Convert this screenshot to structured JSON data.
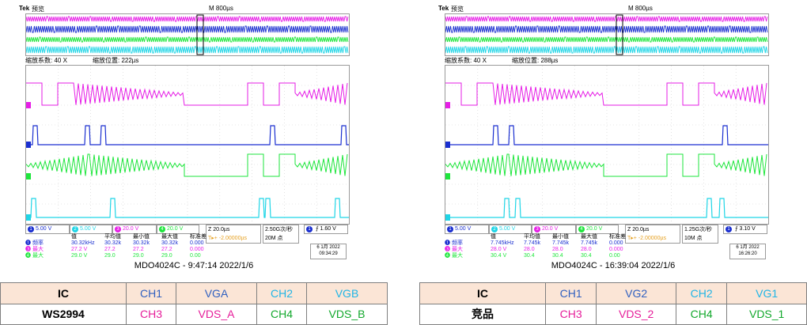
{
  "colors": {
    "ch1": "#ffff00",
    "ch2": "#1fd5e6",
    "ch3": "#e61ee6",
    "ch4": "#1ee63c",
    "ch1_trace": "#1a2fd0",
    "ch2_trace": "#1fd5e6",
    "bg_label": "#fbe5d6"
  },
  "panels": [
    {
      "id": "left",
      "topbar": {
        "logo": "Tek",
        "mode": "预览",
        "mscale": "M 800µs"
      },
      "zoom": {
        "factor": "缩放系数: 40 X",
        "position": "缩放位置: 222µs"
      },
      "settings": {
        "ch1": "5.00 V",
        "ch2": "5.00 V",
        "ch3": "20.0 V",
        "ch4": "20.0 V",
        "timebase": "Z 20.0µs",
        "trigpos": "T▸+ -2.00000µs",
        "samplerate": "2.50G次/秒",
        "points": "20M 点",
        "trig": "1.60 V"
      },
      "meas": {
        "header": [
          "值",
          "平均值",
          "最小值",
          "最大值",
          "标准差"
        ],
        "rows": [
          {
            "label": "频率",
            "values": [
              "30.32kHz",
              "30.32k",
              "30.32k",
              "30.32k",
              "0.000"
            ]
          },
          {
            "label": "最大",
            "values": [
              "27.2 V",
              "27.2",
              "27.2",
              "27.2",
              "0.000"
            ]
          },
          {
            "label": "最大",
            "values": [
              "29.0 V",
              "29.0",
              "29.0",
              "29.0",
              "0.00"
            ]
          }
        ]
      },
      "date": {
        "line1": "6 1月 2022",
        "line2": "09:34:29"
      },
      "caption": "MDO4024C - 9:47:14   2022/1/6",
      "legend": {
        "ic": "IC",
        "part": "WS2994",
        "ch1": "CH1",
        "ch1_name": "VGA",
        "ch2": "CH2",
        "ch2_name": "VGB",
        "ch3": "CH3",
        "ch3_name": "VDS_A",
        "ch4": "CH4",
        "ch4_name": "VDS_B"
      }
    },
    {
      "id": "right",
      "topbar": {
        "logo": "Tek",
        "mode": "预览",
        "mscale": "M 800µs"
      },
      "zoom": {
        "factor": "缩放系数: 40 X",
        "position": "缩放位置: 288µs"
      },
      "settings": {
        "ch1": "5.00 V",
        "ch2": "5.00 V",
        "ch3": "20.0 V",
        "ch4": "20.0 V",
        "timebase": "Z 20.0µs",
        "trigpos": "T▸+ -2.00000µs",
        "samplerate": "1.25G次/秒",
        "points": "10M 点",
        "trig": "3.10 V"
      },
      "meas": {
        "header": [
          "值",
          "平均值",
          "最小值",
          "最大值",
          "标准差"
        ],
        "rows": [
          {
            "label": "频率",
            "values": [
              "7.745kHz",
              "7.745k",
              "7.745k",
              "7.745k",
              "0.000"
            ]
          },
          {
            "label": "最大",
            "values": [
              "28.0 V",
              "28.0",
              "28.0",
              "28.0",
              "0.000"
            ]
          },
          {
            "label": "最大",
            "values": [
              "30.4 V",
              "30.4",
              "30.4",
              "30.4",
              "0.00"
            ]
          }
        ]
      },
      "date": {
        "line1": "6 1月 2022",
        "line2": "16:26:20"
      },
      "caption": "MDO4024C - 16:39:04   2022/1/6",
      "legend": {
        "ic": "IC",
        "part": "竞品",
        "ch1": "CH1",
        "ch1_name": "VG2",
        "ch2": "CH2",
        "ch2_name": "VG1",
        "ch3": "CH3",
        "ch3_name": "VDS_2",
        "ch4": "CH4",
        "ch4_name": "VDS_1"
      }
    }
  ]
}
